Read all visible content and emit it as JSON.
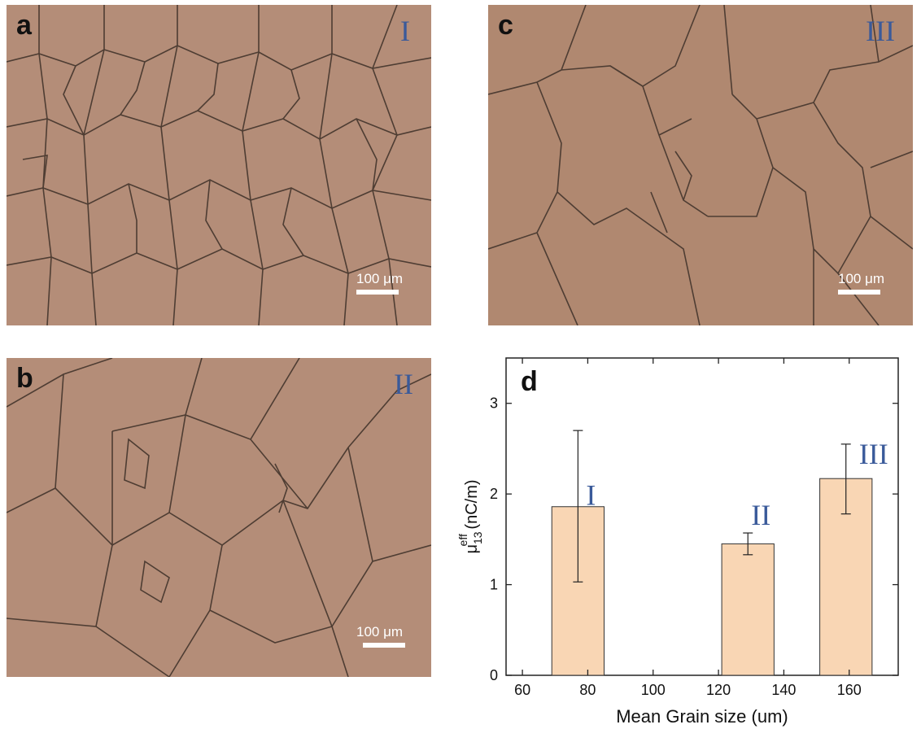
{
  "panels": [
    {
      "id": "a",
      "letter": "a",
      "roman": "I",
      "scale": "100 μm"
    },
    {
      "id": "b",
      "letter": "b",
      "roman": "II",
      "scale": "100 μm"
    },
    {
      "id": "c",
      "letter": "c",
      "roman": "III",
      "scale": "100 μm"
    }
  ],
  "colors": {
    "micrograph_bg": "#b08a75",
    "grain_boundary": "#4a3a30",
    "bar_fill": "#f9d6b4",
    "roman": "#3a5a9a"
  },
  "chart_data": {
    "type": "bar",
    "panel_letter": "d",
    "xlabel": "Mean Grain size (um)",
    "ylabel_main": "μ",
    "ylabel_sup": "eff",
    "ylabel_sub": "13",
    "ylabel_unit": " (nC/m)",
    "xlim": [
      55,
      175
    ],
    "ylim": [
      0,
      3.5
    ],
    "xticks": [
      60,
      80,
      100,
      120,
      140,
      160
    ],
    "yticks": [
      0,
      1,
      2,
      3
    ],
    "bar_width": 16,
    "bars": [
      {
        "label": "I",
        "x": 77,
        "value": 1.86,
        "err_low": 1.03,
        "err_high": 2.7
      },
      {
        "label": "II",
        "x": 129,
        "value": 1.45,
        "err_low": 1.33,
        "err_high": 1.57
      },
      {
        "label": "III",
        "x": 159,
        "value": 2.17,
        "err_low": 1.78,
        "err_high": 2.55
      }
    ]
  }
}
